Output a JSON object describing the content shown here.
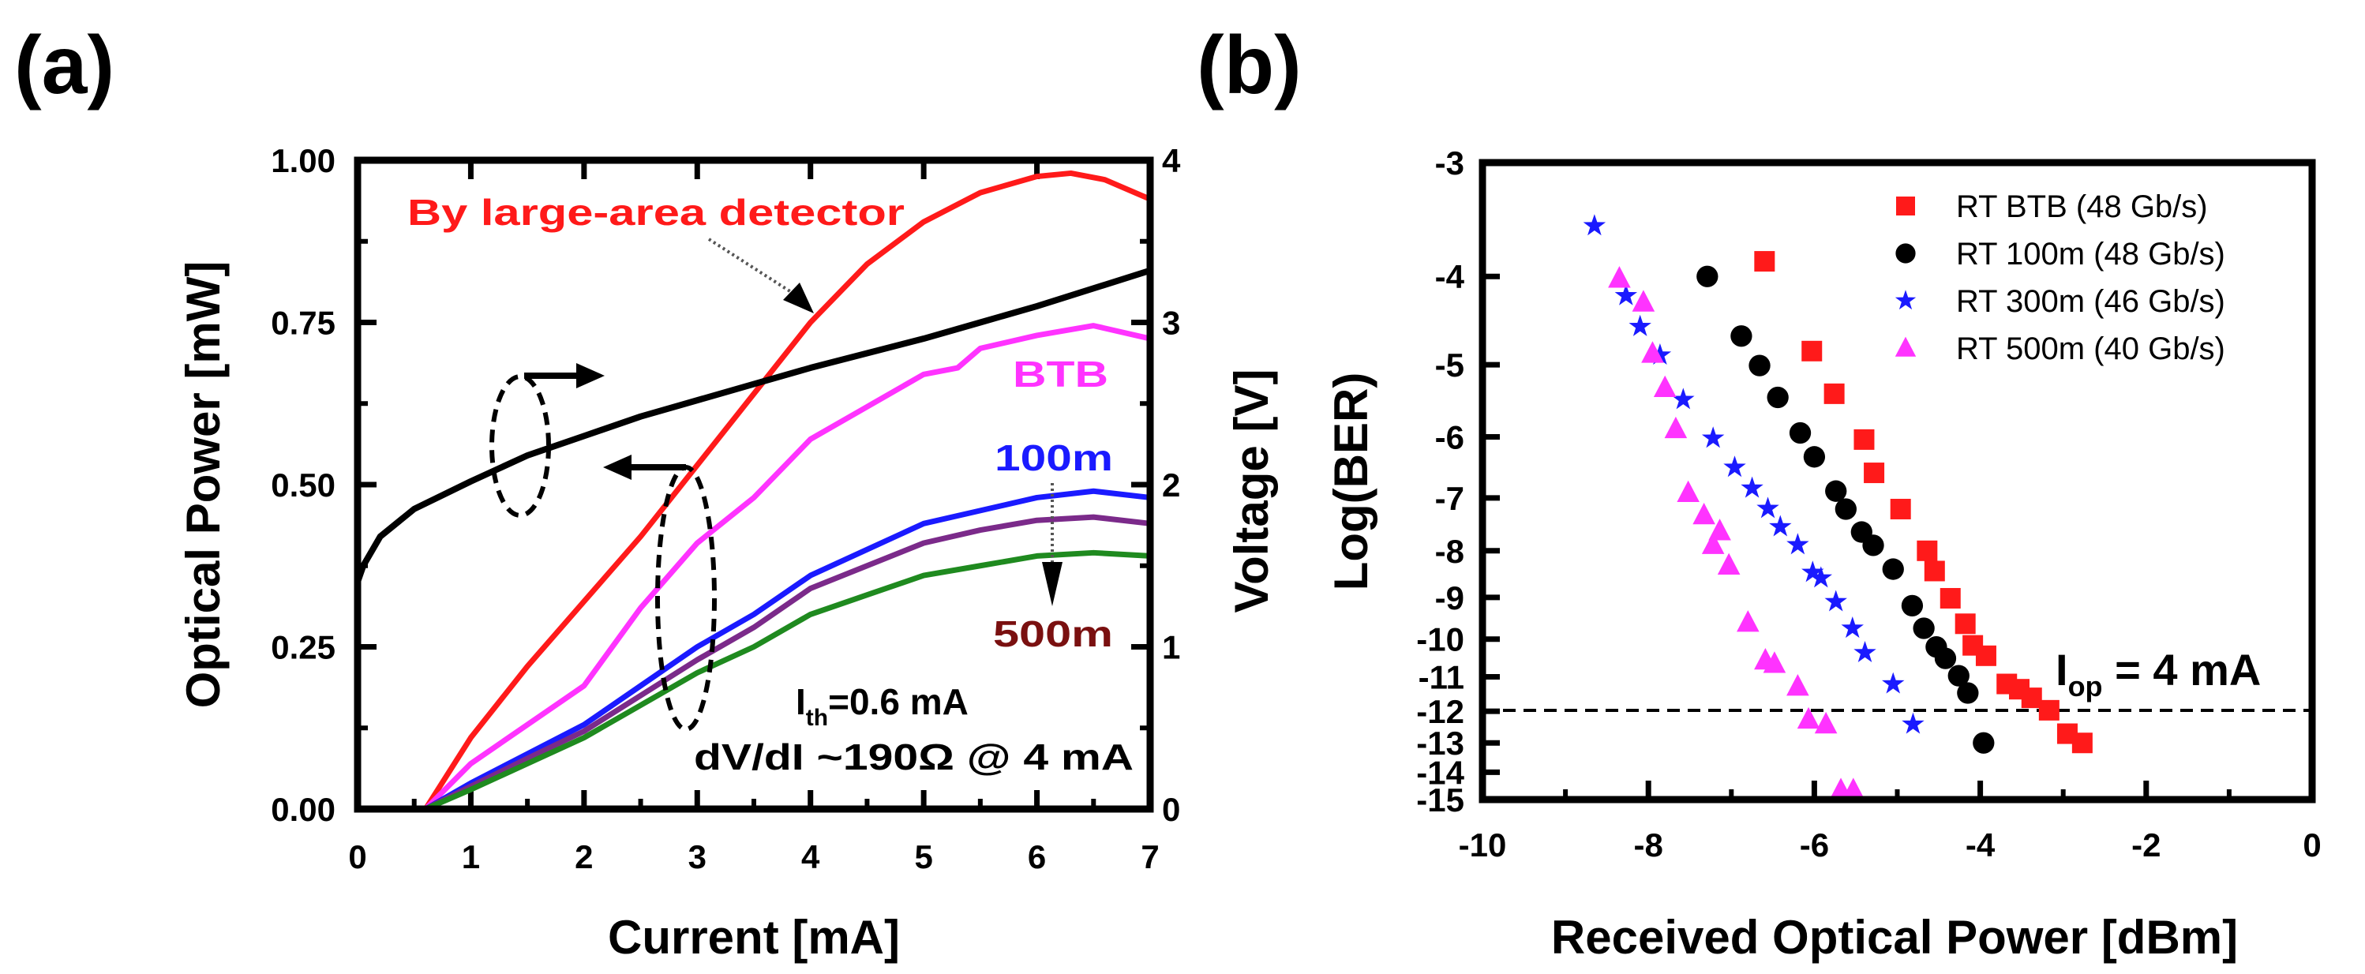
{
  "panel_labels": {
    "a": "(a)",
    "b": "(b)"
  },
  "chart_data": [
    {
      "type": "line",
      "panel": "(a)",
      "xlabel": "Current [mA]",
      "ylabel": "Optical Power [mW]",
      "y2label": "Voltage [V]",
      "xlim": [
        0,
        7
      ],
      "ylim": [
        0,
        1
      ],
      "y2lim": [
        0,
        4
      ],
      "xticks": [
        "0",
        "1",
        "2",
        "3",
        "4",
        "5",
        "6",
        "7"
      ],
      "yticks": [
        "0.00",
        "0.25",
        "0.50",
        "0.75",
        "1.00"
      ],
      "y2ticks": [
        "0",
        "1",
        "2",
        "3",
        "4"
      ],
      "grid": false,
      "series": [
        {
          "name": "By large-area detector",
          "axis": "left",
          "color": "#ff1a1a",
          "x": [
            0,
            0.6,
            1,
            1.5,
            2,
            2.5,
            3,
            3.5,
            4,
            4.5,
            5,
            5.5,
            6,
            6.3,
            6.6,
            7
          ],
          "y": [
            0,
            0,
            0.11,
            0.22,
            0.32,
            0.42,
            0.53,
            0.64,
            0.75,
            0.84,
            0.905,
            0.95,
            0.975,
            0.98,
            0.97,
            0.94
          ]
        },
        {
          "name": "BTB",
          "axis": "left",
          "color": "#ff33ff",
          "x": [
            0,
            0.6,
            1,
            1.5,
            2,
            2.5,
            3,
            3.5,
            4,
            4.5,
            5,
            5.3,
            5.5,
            6,
            6.5,
            7
          ],
          "y": [
            0,
            0,
            0.07,
            0.13,
            0.19,
            0.31,
            0.41,
            0.48,
            0.57,
            0.62,
            0.67,
            0.68,
            0.71,
            0.73,
            0.745,
            0.725
          ]
        },
        {
          "name": "100m",
          "axis": "left",
          "color": "#1a1aff",
          "x": [
            0,
            0.6,
            1,
            1.5,
            2,
            2.5,
            3,
            3.5,
            4,
            4.5,
            5,
            5.5,
            6,
            6.5,
            7
          ],
          "y": [
            0,
            0,
            0.04,
            0.085,
            0.13,
            0.19,
            0.25,
            0.3,
            0.36,
            0.4,
            0.44,
            0.46,
            0.48,
            0.49,
            0.48
          ]
        },
        {
          "name": "",
          "axis": "left",
          "color": "#7b2a8a",
          "x": [
            0,
            0.6,
            1,
            1.5,
            2,
            2.5,
            3,
            3.5,
            4,
            4.5,
            5,
            5.5,
            6,
            6.5,
            7
          ],
          "y": [
            0,
            0,
            0.035,
            0.078,
            0.12,
            0.175,
            0.23,
            0.28,
            0.34,
            0.375,
            0.41,
            0.43,
            0.445,
            0.45,
            0.44
          ]
        },
        {
          "name": "500m",
          "axis": "left",
          "color": "#1f8a1f",
          "x": [
            0,
            0.6,
            1,
            1.5,
            2,
            2.5,
            3,
            3.5,
            4,
            4.5,
            5,
            5.5,
            6,
            6.5,
            7
          ],
          "y": [
            0,
            0,
            0.03,
            0.07,
            0.11,
            0.16,
            0.21,
            0.25,
            0.3,
            0.33,
            0.36,
            0.375,
            0.39,
            0.395,
            0.39
          ]
        },
        {
          "name": "",
          "axis": "right",
          "color": "#000000",
          "x": [
            0,
            0.05,
            0.2,
            0.5,
            1,
            1.5,
            2,
            2.5,
            3,
            3.5,
            4,
            4.5,
            5,
            5.5,
            6,
            6.5,
            7
          ],
          "y": [
            1.4,
            1.5,
            1.68,
            1.85,
            2.02,
            2.18,
            2.3,
            2.42,
            2.52,
            2.62,
            2.72,
            2.81,
            2.9,
            3.0,
            3.1,
            3.21,
            3.32
          ]
        }
      ],
      "annotations": {
        "detector": "By large-area detector",
        "btb": "BTB",
        "m100": "100m",
        "m500": "500m",
        "ith_main": "I",
        "ith_sub": "th",
        "ith_value": "=0.6 mA",
        "dvdi": "dV/dI ~190Ω  @ 4 mA"
      },
      "annotation_colors": {
        "detector": "#ff1a1a",
        "btb": "#ff33ff",
        "m100": "#1a1aff",
        "m500": "#7a1010"
      }
    },
    {
      "type": "scatter",
      "panel": "(b)",
      "xlabel": "Received Optical Power [dBm]",
      "ylabel": "Log(BER)",
      "xlim": [
        -10,
        0
      ],
      "ylim": [
        -3,
        -15
      ],
      "yscale": "BER scale (log of -log BER)",
      "xticks": [
        "-10",
        "-8",
        "-6",
        "-4",
        "-2",
        "0"
      ],
      "yticks": [
        "-3",
        "-4",
        "-5",
        "-6",
        "-7",
        "-8",
        "-9",
        "-10",
        "-11",
        "-12",
        "-13",
        "-14",
        "-15"
      ],
      "grid": false,
      "legend": "top-right",
      "reference_line": {
        "y": -12,
        "style": "dashed"
      },
      "annotation": {
        "main": "I",
        "sub": "op",
        "rest": " = 4 mA"
      },
      "series": [
        {
          "name": "RT BTB (48 Gb/s)",
          "marker": "square",
          "color": "#ff1a1a",
          "x": [
            -6.6,
            -6.03,
            -5.76,
            -5.4,
            -5.28,
            -4.96,
            -4.64,
            -4.55,
            -4.36,
            -4.18,
            -4.09,
            -3.93,
            -3.68,
            -3.53,
            -3.38,
            -3.17,
            -2.95,
            -2.77
          ],
          "y": [
            -3.85,
            -4.83,
            -5.38,
            -6.04,
            -6.57,
            -7.2,
            -8.0,
            -8.42,
            -9.02,
            -9.62,
            -10.16,
            -10.43,
            -11.2,
            -11.35,
            -11.6,
            -11.97,
            -12.7,
            -13.0
          ]
        },
        {
          "name": "RT 100m (48 Gb/s)",
          "marker": "circle",
          "color": "#000000",
          "x": [
            -7.29,
            -6.88,
            -6.66,
            -6.44,
            -6.17,
            -6.0,
            -5.74,
            -5.62,
            -5.43,
            -5.29,
            -5.05,
            -4.82,
            -4.68,
            -4.53,
            -4.42,
            -4.26,
            -4.15,
            -3.96
          ],
          "y": [
            -4.0,
            -4.65,
            -5.01,
            -5.43,
            -5.94,
            -6.31,
            -6.88,
            -7.2,
            -7.63,
            -7.89,
            -8.38,
            -9.19,
            -9.73,
            -10.2,
            -10.5,
            -10.97,
            -11.46,
            -13.0
          ]
        },
        {
          "name": "RT 300m (46 Gb/s)",
          "marker": "star",
          "color": "#1a1aff",
          "x": [
            -8.65,
            -8.27,
            -8.1,
            -7.86,
            -7.58,
            -7.22,
            -6.96,
            -6.75,
            -6.56,
            -6.41,
            -6.2,
            -6.02,
            -5.92,
            -5.74,
            -5.54,
            -5.39,
            -5.05,
            -4.81
          ],
          "y": [
            -3.52,
            -4.2,
            -4.54,
            -4.88,
            -5.46,
            -6.02,
            -6.48,
            -6.83,
            -7.19,
            -7.53,
            -7.88,
            -8.45,
            -8.57,
            -9.1,
            -9.73,
            -10.35,
            -11.2,
            -12.4
          ]
        },
        {
          "name": "RT 500m (40 Gb/s)",
          "marker": "triangle",
          "color": "#ff33ff",
          "x": [
            -8.35,
            -8.06,
            -7.95,
            -7.8,
            -7.67,
            -7.52,
            -7.33,
            -7.14,
            -7.22,
            -7.03,
            -6.8,
            -6.59,
            -6.48,
            -6.2,
            -6.07,
            -5.86,
            -5.68,
            -5.53
          ],
          "y": [
            -4.02,
            -4.27,
            -4.86,
            -5.3,
            -5.88,
            -6.91,
            -7.31,
            -7.61,
            -7.88,
            -8.3,
            -9.59,
            -10.55,
            -10.64,
            -11.27,
            -12.25,
            -12.4,
            -15.0,
            -15.0
          ]
        }
      ]
    }
  ]
}
